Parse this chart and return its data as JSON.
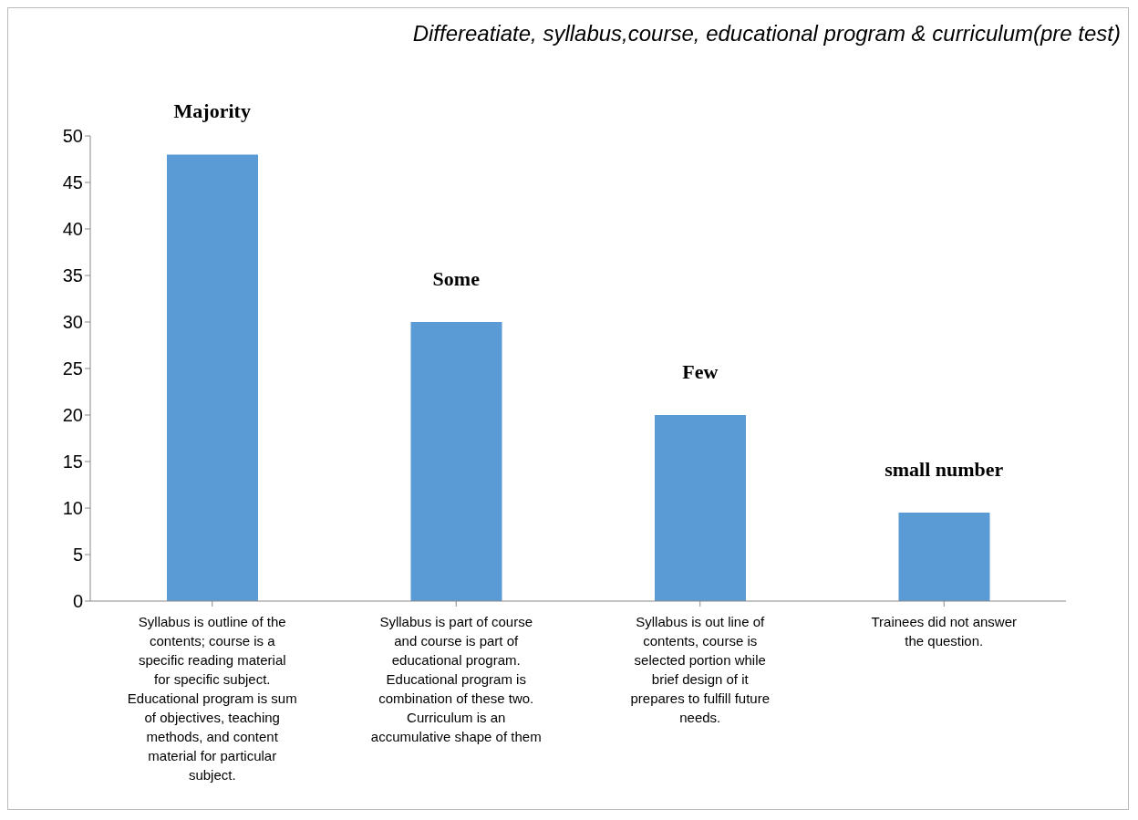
{
  "chart_data": {
    "type": "bar",
    "title": "Differeatiate, syllabus,course, educational program & curriculum(pre test)",
    "categories": [
      "Syllabus is outline of the contents; course is a specific reading material for specific subject. Educational program is sum of objectives, teaching methods, and content material for particular subject.",
      "Syllabus is part of course and course is part of educational program. Educational program is combination of these two. Curriculum is an accumulative shape of them",
      "Syllabus is out line of contents, course is selected portion while brief design of it prepares to fulfill future needs.",
      "Trainees did not answer the question."
    ],
    "values": [
      48,
      30,
      20,
      9.5
    ],
    "color": "#5b9bd5",
    "ylim": [
      0,
      50
    ],
    "yticks": [
      0,
      5,
      10,
      15,
      20,
      25,
      30,
      35,
      40,
      45,
      50
    ],
    "grid": false,
    "legend": false,
    "annotations": [
      {
        "text": "Majority",
        "x": "Syllabus is outline of the contents; course is a specific reading material for specific subject. Educational program is sum of objectives, teaching methods, and content material for particular subject.",
        "y": 48
      },
      {
        "text": "Some",
        "x": "Syllabus is part of course and course is part of educational program. Educational program is combination of these two. Curriculum is an accumulative shape of them",
        "y": 30
      },
      {
        "text": "Few",
        "x": "Syllabus is out line of contents, course is selected portion while brief design of it prepares to fulfill future needs.",
        "y": 20
      },
      {
        "text": "small number",
        "x": "Trainees did not answer the question.",
        "y": 9.5
      }
    ]
  }
}
